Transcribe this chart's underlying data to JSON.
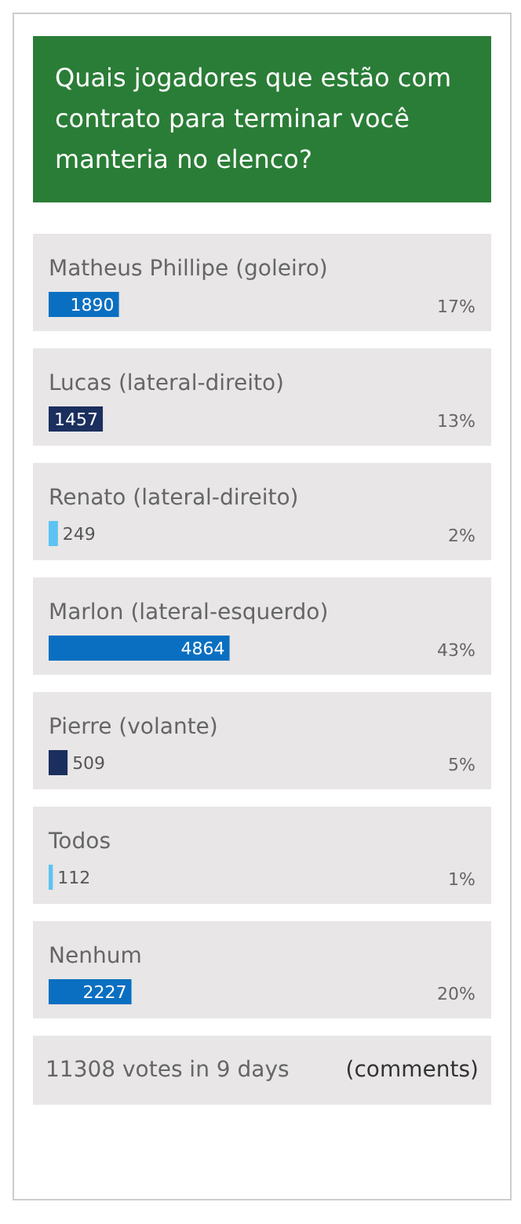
{
  "chart_data": {
    "type": "bar",
    "orientation": "horizontal",
    "title": "Quais jogadores que estão com contrato para terminar você manteria no elenco?",
    "categories": [
      "Matheus Phillipe (goleiro)",
      "Lucas (lateral-direito)",
      "Renato (lateral-direito)",
      "Marlon (lateral-esquerdo)",
      "Pierre (volante)",
      "Todos",
      "Nenhum"
    ],
    "values": [
      1890,
      1457,
      249,
      4864,
      509,
      112,
      2227
    ],
    "colors": [
      "#0b6fc1",
      "#1b2f5e",
      "#5cc3f2",
      "#0b6fc1",
      "#1b2f5e",
      "#5cc3f2",
      "#0b6fc1"
    ],
    "data_labels": true,
    "annotations": [
      "17%",
      "13%",
      "2%",
      "43%",
      "5%",
      "1%",
      "20%",
      "11308 votes in 9 days",
      "(comments)"
    ]
  }
}
